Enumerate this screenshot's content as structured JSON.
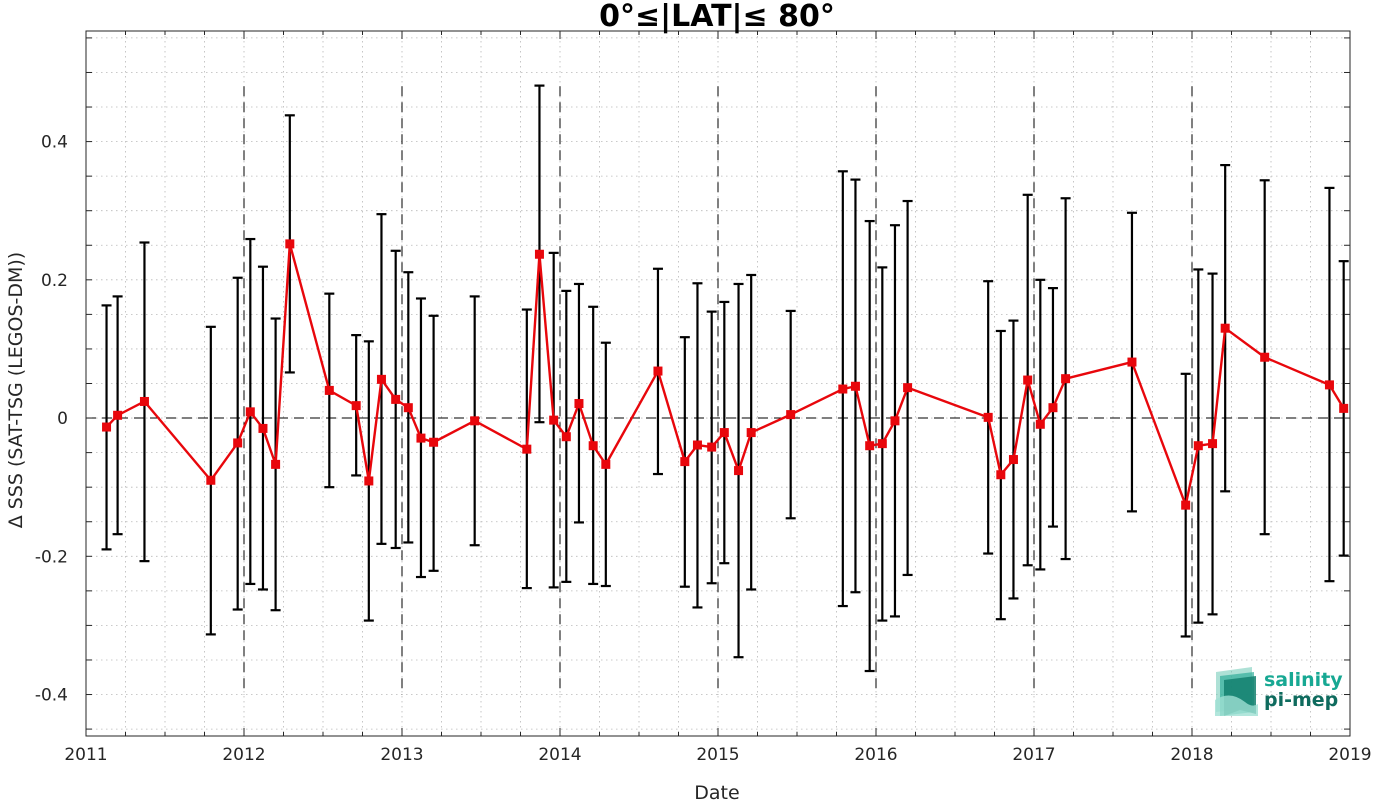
{
  "chart_data": {
    "type": "line",
    "title": "0°≤|LAT|≤ 80°",
    "xlabel": "Date",
    "ylabel": "Δ SSS (SAT-TSG (LEGOS-DM))",
    "xlim": [
      2011,
      2019
    ],
    "ylim": [
      -0.46,
      0.56
    ],
    "xticks": [
      2011,
      2012,
      2013,
      2014,
      2015,
      2016,
      2017,
      2018,
      2019
    ],
    "xtick_labels": [
      "2011",
      "2012",
      "2013",
      "2014",
      "2015",
      "2016",
      "2017",
      "2018",
      "2019"
    ],
    "yticks": [
      -0.4,
      -0.2,
      0,
      0.2,
      0.4
    ],
    "ytick_labels": [
      "-0.4",
      "-0.2",
      "0",
      "0.2",
      "0.4"
    ],
    "grid": true,
    "zero_line": true,
    "year_boundary_lines": [
      2012,
      2013,
      2014,
      2015,
      2016,
      2017,
      2018
    ],
    "series": [
      {
        "color": "#e8070c",
        "errorbar_color": "#000000",
        "marker": "square",
        "points": [
          {
            "x": 2011.13,
            "y": -0.013,
            "lo": -0.19,
            "hi": 0.163
          },
          {
            "x": 2011.2,
            "y": 0.004,
            "lo": -0.168,
            "hi": 0.176
          },
          {
            "x": 2011.37,
            "y": 0.024,
            "lo": -0.207,
            "hi": 0.254
          },
          {
            "x": 2011.79,
            "y": -0.09,
            "lo": -0.313,
            "hi": 0.132
          },
          {
            "x": 2011.96,
            "y": -0.036,
            "lo": -0.277,
            "hi": 0.203
          },
          {
            "x": 2012.04,
            "y": 0.009,
            "lo": -0.24,
            "hi": 0.259
          },
          {
            "x": 2012.12,
            "y": -0.015,
            "lo": -0.248,
            "hi": 0.219
          },
          {
            "x": 2012.2,
            "y": -0.067,
            "lo": -0.278,
            "hi": 0.144
          },
          {
            "x": 2012.29,
            "y": 0.252,
            "lo": 0.066,
            "hi": 0.438
          },
          {
            "x": 2012.54,
            "y": 0.04,
            "lo": -0.1,
            "hi": 0.18
          },
          {
            "x": 2012.71,
            "y": 0.018,
            "lo": -0.083,
            "hi": 0.12
          },
          {
            "x": 2012.79,
            "y": -0.091,
            "lo": -0.293,
            "hi": 0.111
          },
          {
            "x": 2012.87,
            "y": 0.056,
            "lo": -0.182,
            "hi": 0.295
          },
          {
            "x": 2012.96,
            "y": 0.027,
            "lo": -0.188,
            "hi": 0.242
          },
          {
            "x": 2013.04,
            "y": 0.015,
            "lo": -0.18,
            "hi": 0.211
          },
          {
            "x": 2013.12,
            "y": -0.029,
            "lo": -0.23,
            "hi": 0.173
          },
          {
            "x": 2013.2,
            "y": -0.035,
            "lo": -0.221,
            "hi": 0.148
          },
          {
            "x": 2013.46,
            "y": -0.004,
            "lo": -0.184,
            "hi": 0.176
          },
          {
            "x": 2013.79,
            "y": -0.045,
            "lo": -0.246,
            "hi": 0.157
          },
          {
            "x": 2013.87,
            "y": 0.237,
            "lo": -0.006,
            "hi": 0.481
          },
          {
            "x": 2013.96,
            "y": -0.003,
            "lo": -0.245,
            "hi": 0.239
          },
          {
            "x": 2014.04,
            "y": -0.027,
            "lo": -0.237,
            "hi": 0.184
          },
          {
            "x": 2014.12,
            "y": 0.021,
            "lo": -0.151,
            "hi": 0.194
          },
          {
            "x": 2014.21,
            "y": -0.04,
            "lo": -0.24,
            "hi": 0.161
          },
          {
            "x": 2014.29,
            "y": -0.067,
            "lo": -0.243,
            "hi": 0.109
          },
          {
            "x": 2014.62,
            "y": 0.068,
            "lo": -0.081,
            "hi": 0.216
          },
          {
            "x": 2014.79,
            "y": -0.063,
            "lo": -0.244,
            "hi": 0.117
          },
          {
            "x": 2014.87,
            "y": -0.039,
            "lo": -0.274,
            "hi": 0.195
          },
          {
            "x": 2014.96,
            "y": -0.042,
            "lo": -0.239,
            "hi": 0.154
          },
          {
            "x": 2015.04,
            "y": -0.021,
            "lo": -0.21,
            "hi": 0.168
          },
          {
            "x": 2015.13,
            "y": -0.076,
            "lo": -0.346,
            "hi": 0.194
          },
          {
            "x": 2015.21,
            "y": -0.021,
            "lo": -0.248,
            "hi": 0.207
          },
          {
            "x": 2015.46,
            "y": 0.005,
            "lo": -0.145,
            "hi": 0.155
          },
          {
            "x": 2015.79,
            "y": 0.042,
            "lo": -0.272,
            "hi": 0.357
          },
          {
            "x": 2015.87,
            "y": 0.046,
            "lo": -0.252,
            "hi": 0.345
          },
          {
            "x": 2015.96,
            "y": -0.04,
            "lo": -0.366,
            "hi": 0.285
          },
          {
            "x": 2016.04,
            "y": -0.037,
            "lo": -0.293,
            "hi": 0.218
          },
          {
            "x": 2016.12,
            "y": -0.004,
            "lo": -0.287,
            "hi": 0.279
          },
          {
            "x": 2016.2,
            "y": 0.044,
            "lo": -0.227,
            "hi": 0.314
          },
          {
            "x": 2016.71,
            "y": 0.001,
            "lo": -0.196,
            "hi": 0.198
          },
          {
            "x": 2016.79,
            "y": -0.082,
            "lo": -0.291,
            "hi": 0.126
          },
          {
            "x": 2016.87,
            "y": -0.06,
            "lo": -0.261,
            "hi": 0.141
          },
          {
            "x": 2016.96,
            "y": 0.055,
            "lo": -0.213,
            "hi": 0.323
          },
          {
            "x": 2017.04,
            "y": -0.009,
            "lo": -0.219,
            "hi": 0.2
          },
          {
            "x": 2017.12,
            "y": 0.015,
            "lo": -0.157,
            "hi": 0.188
          },
          {
            "x": 2017.2,
            "y": 0.057,
            "lo": -0.204,
            "hi": 0.318
          },
          {
            "x": 2017.62,
            "y": 0.081,
            "lo": -0.135,
            "hi": 0.297
          },
          {
            "x": 2017.96,
            "y": -0.126,
            "lo": -0.316,
            "hi": 0.064
          },
          {
            "x": 2018.04,
            "y": -0.04,
            "lo": -0.296,
            "hi": 0.215
          },
          {
            "x": 2018.13,
            "y": -0.037,
            "lo": -0.284,
            "hi": 0.209
          },
          {
            "x": 2018.21,
            "y": 0.13,
            "lo": -0.106,
            "hi": 0.366
          },
          {
            "x": 2018.46,
            "y": 0.088,
            "lo": -0.168,
            "hi": 0.344
          },
          {
            "x": 2018.87,
            "y": 0.048,
            "lo": -0.236,
            "hi": 0.333
          },
          {
            "x": 2018.96,
            "y": 0.014,
            "lo": -0.199,
            "hi": 0.227
          }
        ]
      }
    ]
  },
  "logo": {
    "line1": "salinity",
    "line2": "pi-mep",
    "color_line1": "#17a893",
    "color_line2": "#0f6b5e"
  }
}
